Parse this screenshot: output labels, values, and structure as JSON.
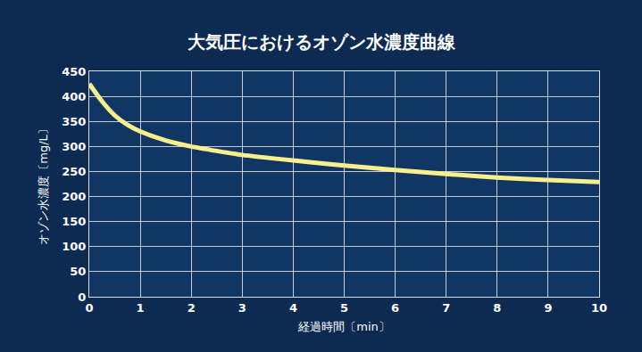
{
  "chart_data": {
    "type": "line",
    "title": "大気圧におけるオゾン水濃度曲線",
    "x_label": "経過時間〔min〕",
    "y_label": "オゾン水濃度〔mg/L〕",
    "x": [
      0,
      0.25,
      0.5,
      0.75,
      1,
      1.5,
      2,
      2.5,
      3,
      4,
      5,
      6,
      7,
      8,
      9,
      10
    ],
    "values": [
      425,
      390,
      362,
      343,
      330,
      312,
      300,
      291,
      283,
      272,
      262,
      253,
      245,
      238,
      233,
      229
    ],
    "color": "#f8f08c",
    "xlim": [
      0,
      10
    ],
    "ylim": [
      0,
      450
    ],
    "xticks": [
      0,
      1,
      2,
      3,
      4,
      5,
      6,
      7,
      8,
      9,
      10
    ],
    "yticks": [
      0,
      50,
      100,
      150,
      200,
      250,
      300,
      350,
      400,
      450
    ],
    "grid": true
  }
}
